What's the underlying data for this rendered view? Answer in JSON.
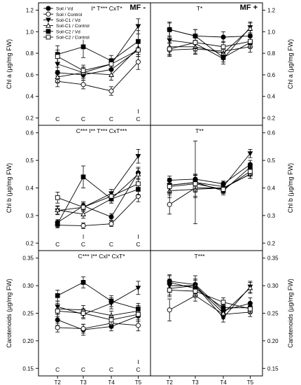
{
  "chart_data": {
    "type": "line",
    "x_ticks": [
      "T2",
      "T3",
      "T4",
      "T5"
    ],
    "columns": [
      {
        "key": "mf_minus",
        "label": "MF -"
      },
      {
        "key": "mf_plus",
        "label": "MF +"
      }
    ],
    "legend": [
      {
        "name": "Soil / Vd",
        "marker": "circle",
        "fill": "#000000"
      },
      {
        "name": "Soil / Control",
        "marker": "circle",
        "fill": "#ffffff"
      },
      {
        "name": "Soil-C1 / Vd",
        "marker": "triangle-down",
        "fill": "#000000"
      },
      {
        "name": "Soil-C1 / Control",
        "marker": "triangle-up",
        "fill": "#ffffff"
      },
      {
        "name": "Soil-C2 / Vd",
        "marker": "square",
        "fill": "#000000"
      },
      {
        "name": "Soil-C2 / Control",
        "marker": "square",
        "fill": "#ffffff"
      }
    ],
    "rows": [
      {
        "ylabel": "Chl a (µg/mg FW)",
        "ylim": [
          0.2,
          1.2
        ],
        "yticks": [
          0.2,
          0.4,
          0.6,
          0.8,
          1.0,
          1.2
        ],
        "decimals": 1,
        "panels": [
          {
            "stats": "C** I* T*** CxT*",
            "letters": [
              {
                "x": 0,
                "text": "C"
              },
              {
                "x": 1,
                "text": "C"
              },
              {
                "x": 2,
                "text": "C"
              },
              {
                "x": 3,
                "text": "I"
              },
              {
                "x": 3,
                "text": "C"
              }
            ],
            "series": [
              {
                "values": [
                  0.62,
                  0.6,
                  0.65,
                  0.83
                ],
                "err": [
                  0.05,
                  0.05,
                  0.05,
                  0.06
                ]
              },
              {
                "values": [
                  0.54,
                  0.51,
                  0.45,
                  0.72
                ],
                "err": [
                  0.05,
                  0.04,
                  0.04,
                  0.07
                ]
              },
              {
                "values": [
                  0.7,
                  0.62,
                  0.7,
                  1.05
                ],
                "err": [
                  0.06,
                  0.05,
                  0.05,
                  0.07
                ]
              },
              {
                "values": [
                  0.58,
                  0.62,
                  0.6,
                  0.85
                ],
                "err": [
                  0.05,
                  0.05,
                  0.05,
                  0.06
                ]
              },
              {
                "values": [
                  0.79,
                  0.86,
                  0.73,
                  0.91
                ],
                "err": [
                  0.08,
                  0.1,
                  0.05,
                  0.1
                ]
              },
              {
                "values": [
                  0.77,
                  0.64,
                  0.7,
                  0.83
                ],
                "err": [
                  0.06,
                  0.05,
                  0.05,
                  0.06
                ]
              }
            ]
          },
          {
            "stats": "T*",
            "letters": [],
            "series": [
              {
                "values": [
                  1.02,
                  0.96,
                  0.95,
                  0.96
                ],
                "err": [
                  0.07,
                  0.06,
                  0.05,
                  0.05
                ]
              },
              {
                "values": [
                  0.83,
                  0.84,
                  0.82,
                  0.86
                ],
                "err": [
                  0.06,
                  0.05,
                  0.05,
                  0.05
                ]
              },
              {
                "values": [
                  0.92,
                  0.89,
                  0.75,
                  1.04
                ],
                "err": [
                  0.08,
                  0.07,
                  0.05,
                  0.05
                ]
              },
              {
                "values": [
                  0.86,
                  0.86,
                  0.8,
                  1.03
                ],
                "err": [
                  0.07,
                  0.06,
                  0.05,
                  0.05
                ]
              },
              {
                "values": [
                  1.02,
                  0.96,
                  0.76,
                  0.9
                ],
                "err": [
                  0.06,
                  0.06,
                  0.04,
                  0.05
                ]
              },
              {
                "values": [
                  0.84,
                  0.9,
                  0.86,
                  0.91
                ],
                "err": [
                  0.06,
                  0.05,
                  0.05,
                  0.05
                ]
              }
            ]
          }
        ]
      },
      {
        "ylabel": "Chl b (µg/mg FW)",
        "ylim": [
          0.2,
          0.6
        ],
        "yticks": [
          0.2,
          0.3,
          0.4,
          0.5,
          0.6
        ],
        "decimals": 1,
        "panels": [
          {
            "stats": "C*** I** T*** CxT***",
            "letters": [
              {
                "x": 0,
                "text": "C"
              },
              {
                "x": 1,
                "text": "I"
              },
              {
                "x": 1,
                "text": "C"
              },
              {
                "x": 2,
                "text": "C"
              },
              {
                "x": 3,
                "text": "I"
              },
              {
                "x": 3,
                "text": "C"
              }
            ],
            "series": [
              {
                "values": [
                  0.275,
                  0.335,
                  0.295,
                  0.455
                ],
                "err": [
                  0.01,
                  0.015,
                  0.012,
                  0.02
                ]
              },
              {
                "values": [
                  0.265,
                  0.263,
                  0.27,
                  0.37
                ],
                "err": [
                  0.01,
                  0.01,
                  0.01,
                  0.02
                ]
              },
              {
                "values": [
                  0.318,
                  0.33,
                  0.38,
                  0.515
                ],
                "err": [
                  0.015,
                  0.015,
                  0.015,
                  0.025
                ]
              },
              {
                "values": [
                  0.32,
                  0.305,
                  0.36,
                  0.45
                ],
                "err": [
                  0.015,
                  0.015,
                  0.015,
                  0.02
                ]
              },
              {
                "values": [
                  0.27,
                  0.44,
                  0.36,
                  0.395
                ],
                "err": [
                  0.01,
                  0.04,
                  0.015,
                  0.02
                ]
              },
              {
                "values": [
                  0.365,
                  0.33,
                  0.37,
                  0.415
                ],
                "err": [
                  0.02,
                  0.015,
                  0.015,
                  0.02
                ]
              }
            ]
          },
          {
            "stats": "T**",
            "letters": [],
            "series": [
              {
                "values": [
                  0.428,
                  0.432,
                  0.415,
                  0.485
                ],
                "err": [
                  0.015,
                  0.015,
                  0.01,
                  0.015
                ]
              },
              {
                "values": [
                  0.34,
                  0.4,
                  0.4,
                  0.45
                ],
                "err": [
                  0.035,
                  0.03,
                  0.015,
                  0.015
                ]
              },
              {
                "values": [
                  0.41,
                  0.42,
                  0.405,
                  0.525
                ],
                "err": [
                  0.025,
                  0.03,
                  0.015,
                  0.015
                ]
              },
              {
                "values": [
                  0.39,
                  0.395,
                  0.4,
                  0.45
                ],
                "err": [
                  0.025,
                  0.03,
                  0.015,
                  0.015
                ]
              },
              {
                "values": [
                  0.41,
                  0.42,
                  0.39,
                  0.475
                ],
                "err": [
                  0.025,
                  0.15,
                  0.015,
                  0.015
                ]
              },
              {
                "values": [
                  0.405,
                  0.415,
                  0.395,
                  0.46
                ],
                "err": [
                  0.025,
                  0.03,
                  0.015,
                  0.015
                ]
              }
            ]
          }
        ]
      },
      {
        "ylabel": "Carotenoids (µg/mg FW)",
        "ylim": [
          0.15,
          0.35
        ],
        "yticks": [
          0.15,
          0.2,
          0.25,
          0.3,
          0.35
        ],
        "decimals": 2,
        "panels": [
          {
            "stats": "C*** I** CxI* CxT*",
            "letters": [
              {
                "x": 0,
                "text": "C"
              },
              {
                "x": 1,
                "text": "C"
              },
              {
                "x": 2,
                "text": "C"
              },
              {
                "x": 3,
                "text": "I"
              },
              {
                "x": 3,
                "text": "C"
              }
            ],
            "series": [
              {
                "values": [
                  0.238,
                  0.22,
                  0.226,
                  0.245
                ],
                "err": [
                  0.01,
                  0.01,
                  0.008,
                  0.01
                ]
              },
              {
                "values": [
                  0.224,
                  0.222,
                  0.232,
                  0.228
                ],
                "err": [
                  0.008,
                  0.008,
                  0.008,
                  0.01
                ]
              },
              {
                "values": [
                  0.262,
                  0.248,
                  0.268,
                  0.296
                ],
                "err": [
                  0.01,
                  0.008,
                  0.01,
                  0.012
                ]
              },
              {
                "values": [
                  0.258,
                  0.256,
                  0.246,
                  0.254
                ],
                "err": [
                  0.01,
                  0.008,
                  0.008,
                  0.01
                ]
              },
              {
                "values": [
                  0.282,
                  0.306,
                  0.272,
                  0.258
                ],
                "err": [
                  0.01,
                  0.01,
                  0.01,
                  0.01
                ]
              },
              {
                "values": [
                  0.254,
                  0.25,
                  0.238,
                  0.248
                ],
                "err": [
                  0.01,
                  0.008,
                  0.008,
                  0.01
                ]
              }
            ]
          },
          {
            "stats": "T***",
            "letters": [],
            "series": [
              {
                "values": [
                  0.308,
                  0.302,
                  0.255,
                  0.268
                ],
                "err": [
                  0.012,
                  0.01,
                  0.01,
                  0.01
                ]
              },
              {
                "values": [
                  0.256,
                  0.282,
                  0.248,
                  0.252
                ],
                "err": [
                  0.02,
                  0.01,
                  0.008,
                  0.008
                ]
              },
              {
                "values": [
                  0.3,
                  0.3,
                  0.242,
                  0.298
                ],
                "err": [
                  0.012,
                  0.018,
                  0.008,
                  0.01
                ]
              },
              {
                "values": [
                  0.295,
                  0.3,
                  0.25,
                  0.296
                ],
                "err": [
                  0.012,
                  0.01,
                  0.008,
                  0.01
                ]
              },
              {
                "values": [
                  0.306,
                  0.295,
                  0.26,
                  0.26
                ],
                "err": [
                  0.012,
                  0.01,
                  0.008,
                  0.008
                ]
              },
              {
                "values": [
                  0.292,
                  0.29,
                  0.27,
                  0.258
                ],
                "err": [
                  0.012,
                  0.01,
                  0.008,
                  0.008
                ]
              }
            ]
          }
        ]
      }
    ]
  }
}
